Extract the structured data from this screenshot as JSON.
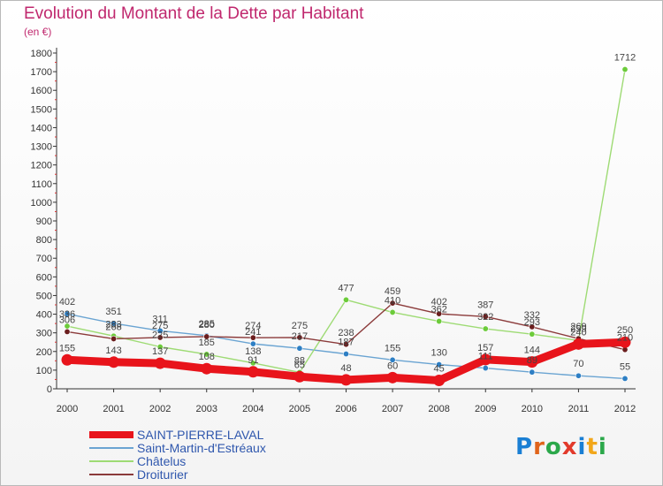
{
  "header": {
    "title": "Evolution du Montant de la Dette par Habitant",
    "unit": "(en €)"
  },
  "logo": {
    "text": "Proxiti",
    "colors": [
      "#1a7fd4",
      "#e0641b",
      "#2ba84a",
      "#e23a2b",
      "#1a7fd4",
      "#f2a71b",
      "#2ba84a"
    ]
  },
  "chart_data": {
    "type": "line",
    "categories": [
      "2000",
      "2001",
      "2002",
      "2003",
      "2004",
      "2005",
      "2006",
      "2007",
      "2008",
      "2009",
      "2010",
      "2011",
      "2012"
    ],
    "ylim": [
      0,
      1800
    ],
    "yticks": [
      0,
      100,
      200,
      300,
      400,
      500,
      600,
      700,
      800,
      900,
      1000,
      1100,
      1200,
      1300,
      1400,
      1500,
      1600,
      1700,
      1800
    ],
    "grid": false,
    "legend_placement": "bottom-left",
    "series": [
      {
        "name": "SAINT-PIERRE-LAVAL",
        "color": "#e8141b",
        "values": [
          155,
          143,
          137,
          108,
          91,
          65,
          48,
          60,
          45,
          157,
          144,
          240,
          250
        ],
        "labels": [
          "155",
          "143",
          "137",
          "108",
          "91",
          "65",
          "48",
          "60",
          "45",
          "157",
          "144",
          "240",
          "250"
        ]
      },
      {
        "name": "Saint-Martin-d'Estréaux",
        "color": "#6aa4d2",
        "marker": "#2e7fc4",
        "values": [
          402,
          351,
          311,
          285,
          241,
          217,
          187,
          155,
          130,
          111,
          89,
          70,
          55
        ],
        "labels": [
          "402",
          "351",
          "311",
          "285",
          "241",
          "217",
          "187",
          "155",
          "130",
          "111",
          "89",
          "70",
          "55"
        ]
      },
      {
        "name": "Châtelus",
        "color": "#9edb74",
        "marker": "#6ccb3a",
        "values": [
          336,
          283,
          225,
          185,
          138,
          88,
          477,
          410,
          362,
          322,
          293,
          259,
          1712
        ],
        "labels": [
          "336",
          "283",
          "225",
          "185",
          "138",
          "88",
          "477",
          "410",
          "362",
          "322",
          "293",
          "259",
          "1712"
        ]
      },
      {
        "name": "Droiturier",
        "color": "#8b3a3a",
        "marker": "#6b1e1e",
        "values": [
          306,
          268,
          275,
          280,
          274,
          275,
          238,
          459,
          402,
          387,
          332,
          269,
          210
        ],
        "labels": [
          "306",
          "268",
          "275",
          "280",
          "274",
          "275",
          "238",
          "459",
          "402",
          "387",
          "332",
          "269",
          "210"
        ]
      }
    ]
  }
}
